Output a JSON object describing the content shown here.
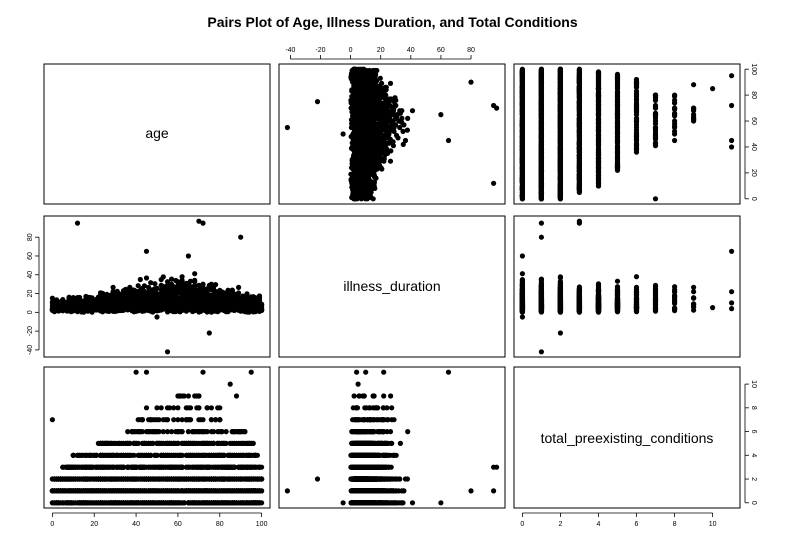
{
  "chart_data": {
    "type": "scatter",
    "title": "Pairs Plot of Age, Illness Duration, and Total Conditions",
    "variables": [
      "age",
      "illness_duration",
      "total_preexisting_conditions"
    ],
    "ranges": {
      "age": [
        0,
        100
      ],
      "illness_duration": [
        -42,
        97
      ],
      "total_preexisting_conditions": [
        0,
        11
      ]
    },
    "ticks": {
      "age": [
        0,
        20,
        40,
        60,
        80,
        100
      ],
      "illness_duration": [
        -40,
        -20,
        0,
        20,
        40,
        60,
        80
      ],
      "total_preexisting_conditions": [
        0,
        2,
        4,
        6,
        8,
        10
      ]
    },
    "tick_labels": {
      "age": [
        "0",
        "20",
        "40",
        "60",
        "80",
        "100"
      ],
      "illness_duration": [
        "-40",
        "-20",
        "0",
        "20",
        "40",
        "60",
        "80"
      ],
      "total_preexisting_conditions": [
        "0",
        "2",
        "4",
        "6",
        "8",
        "10"
      ]
    },
    "grid": false,
    "legend": "none",
    "dense_regions": {
      "age_vs_duration": {
        "age_range": [
          0,
          100
        ],
        "duration_core": [
          0,
          40
        ],
        "peak_age": 60,
        "peak_duration": 60
      },
      "age_max_by_conditions": [
        100,
        100,
        100,
        100,
        98,
        96,
        93,
        85,
        80,
        70
      ],
      "age_min_by_conditions": [
        0,
        0,
        0,
        5,
        10,
        22,
        32,
        40,
        45,
        60
      ],
      "duration_max_by_conditions": [
        70,
        97,
        62,
        97,
        65,
        60,
        42,
        38,
        40,
        28
      ],
      "duration_min_by_conditions": [
        0,
        -5,
        -22,
        -5,
        -5,
        -5,
        -3,
        -2,
        -2,
        0
      ]
    },
    "outliers": [
      {
        "age": 55,
        "illness_duration": -42,
        "conditions": 1
      },
      {
        "age": 75,
        "illness_duration": -22,
        "conditions": 2
      },
      {
        "age": 50,
        "illness_duration": -5,
        "conditions": 0
      },
      {
        "age": 70,
        "illness_duration": 97,
        "conditions": 3
      },
      {
        "age": 12,
        "illness_duration": 95,
        "conditions": 1
      },
      {
        "age": 90,
        "illness_duration": 80,
        "conditions": 1
      },
      {
        "age": 45,
        "illness_duration": 65,
        "conditions": 11
      },
      {
        "age": 72,
        "illness_duration": 95,
        "conditions": 3
      },
      {
        "age": 0,
        "illness_duration": 15,
        "conditions": 7
      },
      {
        "age": 95,
        "illness_duration": 4,
        "conditions": 11
      },
      {
        "age": 85,
        "illness_duration": 5,
        "conditions": 10
      },
      {
        "age": 40,
        "illness_duration": 10,
        "conditions": 11
      },
      {
        "age": 72,
        "illness_duration": 22,
        "conditions": 11
      },
      {
        "age": 65,
        "illness_duration": 60,
        "conditions": 0
      },
      {
        "age": 0,
        "illness_duration": 3,
        "conditions": 1
      },
      {
        "age": 88,
        "illness_duration": 15,
        "conditions": 9
      },
      {
        "age": 42,
        "illness_duration": 35,
        "conditions": 1
      }
    ]
  }
}
